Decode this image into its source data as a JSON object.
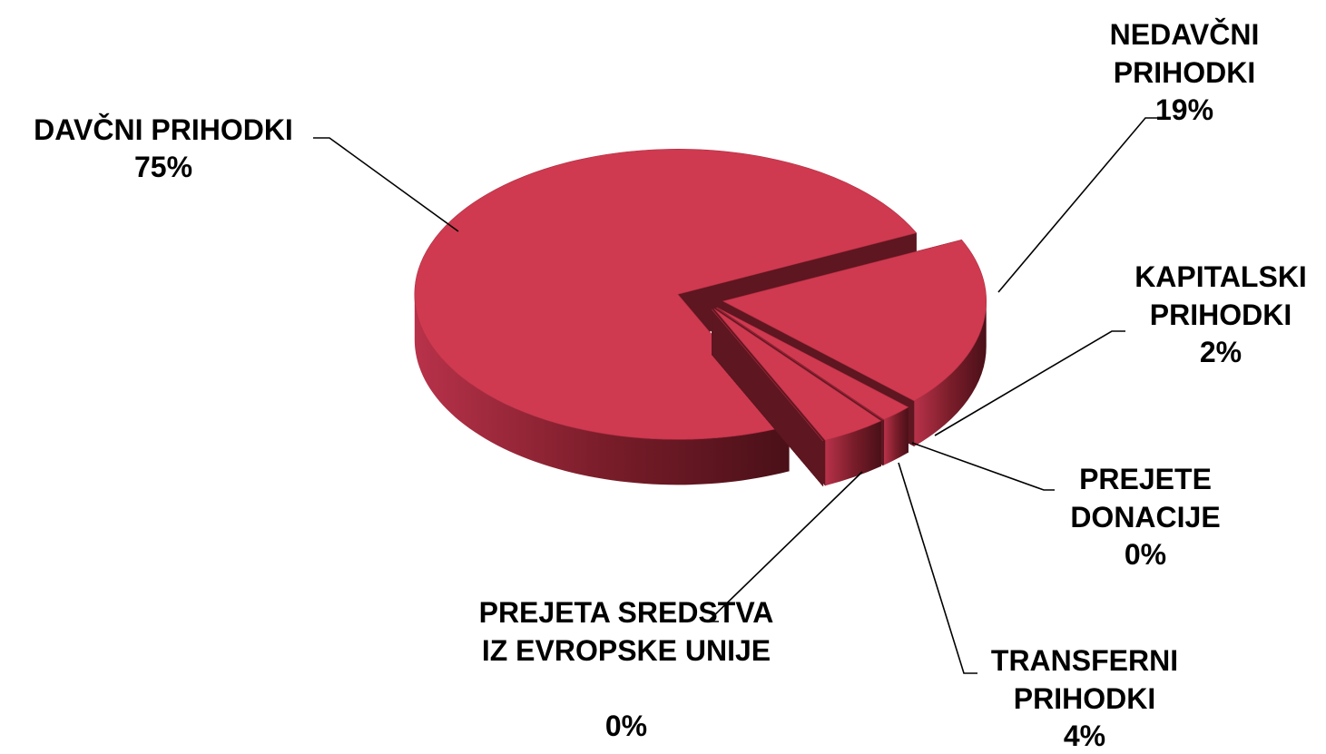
{
  "chart_data": {
    "type": "pie3d",
    "categories": [
      "DAVČNI PRIHODKI",
      "NEDAVČNI PRIHODKI",
      "KAPITALSKI PRIHODKI",
      "PREJETE DONACIJE",
      "TRANSFERNI PRIHODKI",
      "PREJETA SREDSTVA IZ EVROPSKE UNIJE"
    ],
    "values": [
      75,
      19,
      2,
      0,
      4,
      0
    ],
    "value_labels": [
      "75%",
      "19%",
      "2%",
      "0%",
      "4%",
      "0%"
    ],
    "color": "#cf3a50"
  }
}
